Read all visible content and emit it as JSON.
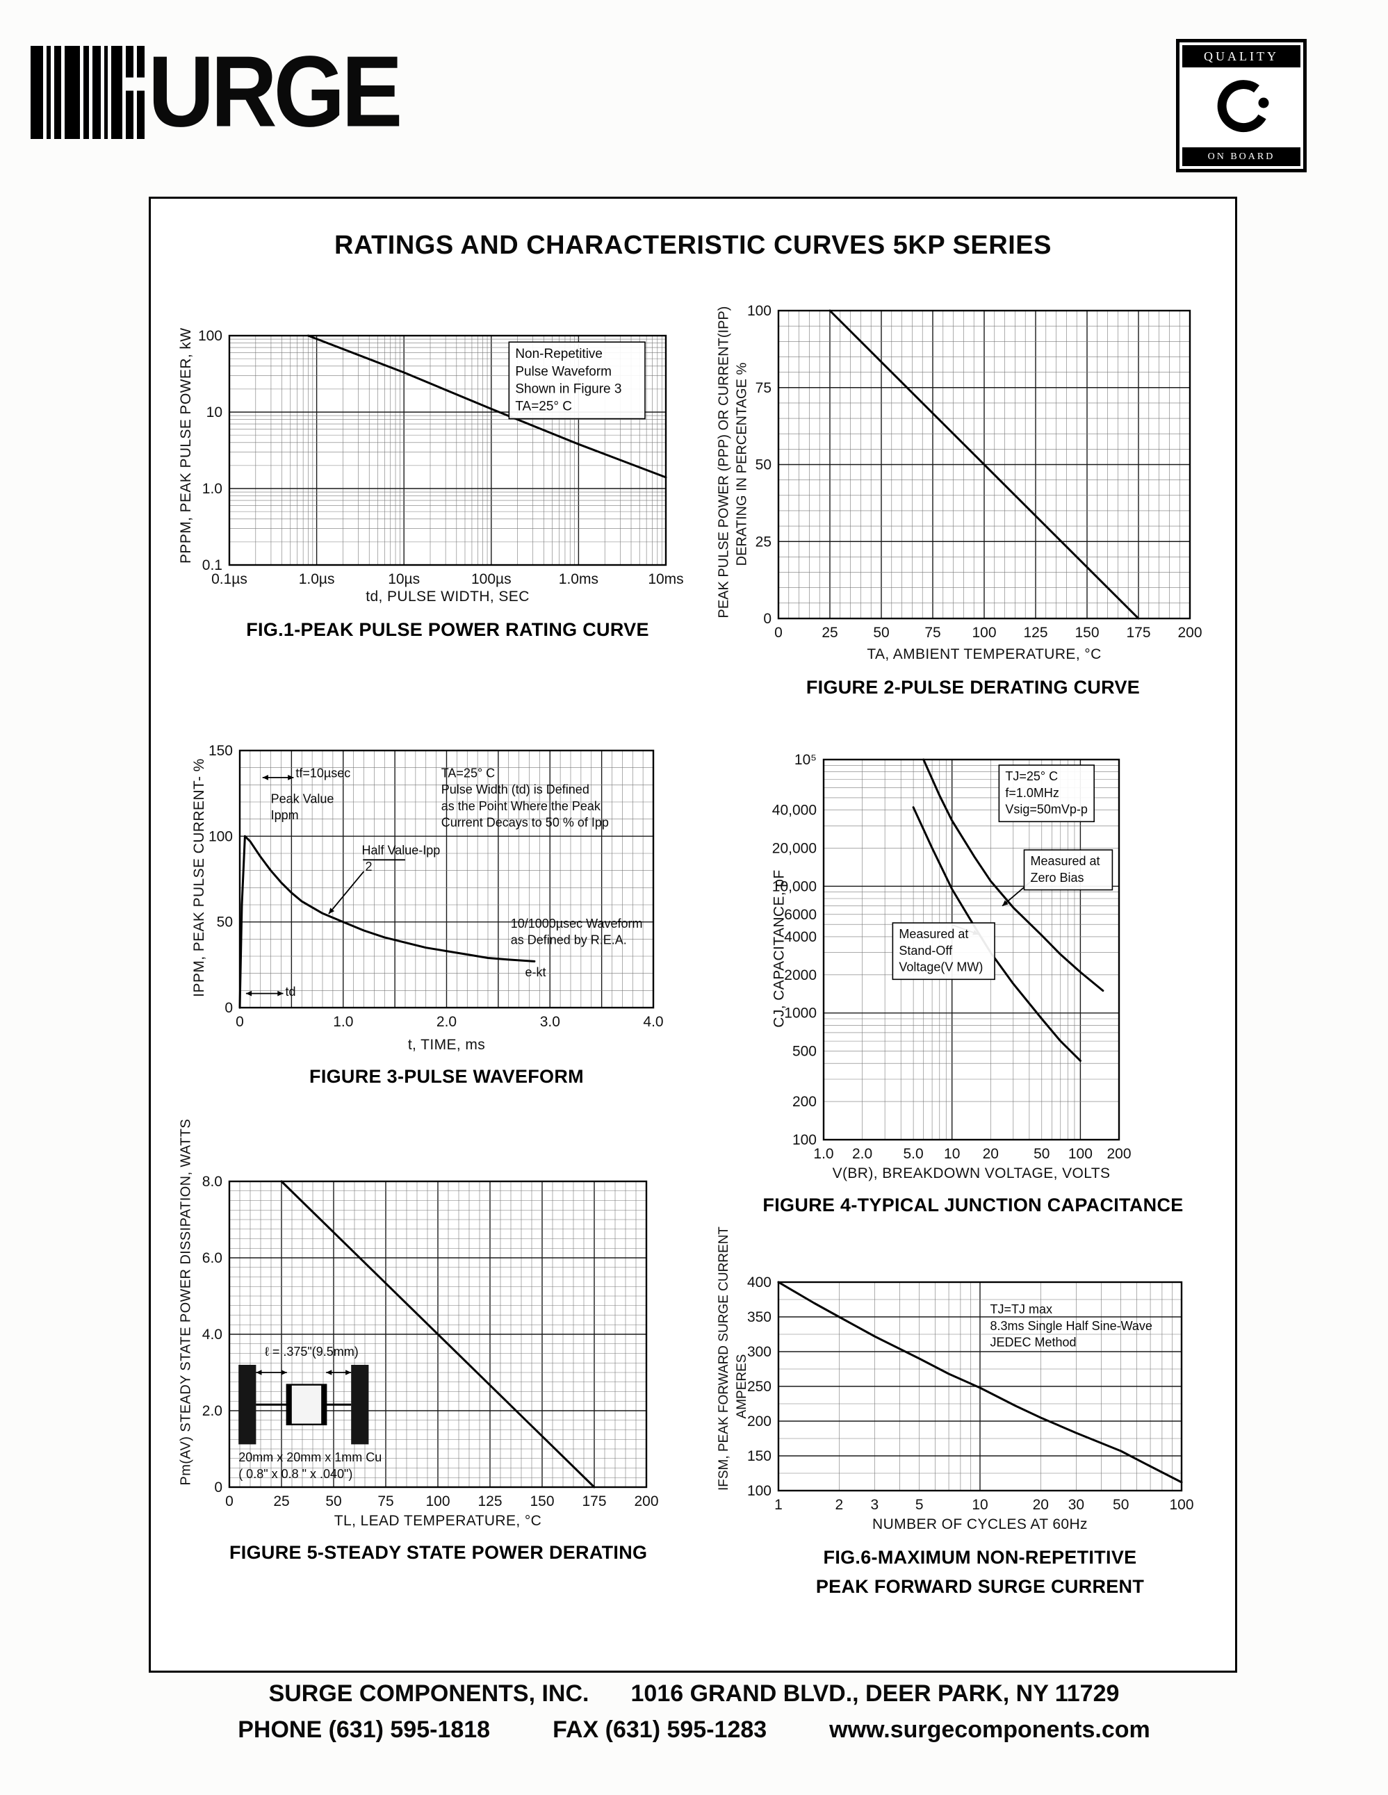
{
  "page": {
    "brand": "URGE",
    "badge_top": "QUALITY",
    "badge_bottom": "ON BOARD",
    "title": "RATINGS AND CHARACTERISTIC CURVES 5KP SERIES",
    "footer": {
      "company": "SURGE COMPONENTS, INC.",
      "address": "1016 GRAND BLVD., DEER PARK, NY  11729",
      "phone": "PHONE (631) 595-1818",
      "fax": "FAX (631) 595-1283",
      "website": "www.surgecomponents.com"
    }
  },
  "chart_data": [
    {
      "id": "fig1",
      "type": "line",
      "title": "FIG.1-PEAK PULSE POWER RATING CURVE",
      "xlabel": "td, PULSE WIDTH, SEC",
      "ylabel": "PPPM, PEAK PULSE POWER, kW",
      "xscale": "log",
      "yscale": "log",
      "xlim": [
        1e-07,
        0.01
      ],
      "ylim": [
        0.1,
        100
      ],
      "xticks": [
        {
          "v": 1e-07,
          "t": "0.1µs"
        },
        {
          "v": 1e-06,
          "t": "1.0µs"
        },
        {
          "v": 1e-05,
          "t": "10µs"
        },
        {
          "v": 0.0001,
          "t": "100µs"
        },
        {
          "v": 0.001,
          "t": "1.0ms"
        },
        {
          "v": 0.01,
          "t": "10ms"
        }
      ],
      "yticks": [
        {
          "v": 100,
          "t": "100"
        },
        {
          "v": 10,
          "t": "10"
        },
        {
          "v": 1,
          "t": "1.0"
        },
        {
          "v": 0.1,
          "t": "0.1"
        }
      ],
      "series": [
        {
          "name": "peak-pulse-power",
          "points": [
            [
              8e-07,
              100
            ],
            [
              1e-05,
              33
            ],
            [
              0.0001,
              11
            ],
            [
              0.001,
              3.8
            ],
            [
              0.01,
              1.4
            ]
          ]
        }
      ],
      "annotations": [
        {
          "lines": [
            "Non-Repetitive",
            "Pulse Waveform",
            "Shown in Figure 3",
            "TA=25° C"
          ],
          "fx": 0.655,
          "fy": 0.04,
          "box": true,
          "fs": 19
        }
      ]
    },
    {
      "id": "fig2",
      "type": "line",
      "title": "FIGURE 2-PULSE DERATING CURVE",
      "xlabel": "TA, AMBIENT TEMPERATURE, °C",
      "ylabel1": "PEAK PULSE POWER (PPP) OR CURRENT(IPP)",
      "ylabel2": "DERATING IN PERCENTAGE %",
      "xscale": "linear",
      "yscale": "linear",
      "xlim": [
        0,
        200
      ],
      "ylim": [
        0,
        100
      ],
      "grid": {
        "xminor": 5,
        "xmajor": 25,
        "yminor": 5,
        "ymajor": 25
      },
      "xticks": [
        {
          "v": 0,
          "t": "0"
        },
        {
          "v": 25,
          "t": "25"
        },
        {
          "v": 50,
          "t": "50"
        },
        {
          "v": 75,
          "t": "75"
        },
        {
          "v": 100,
          "t": "100"
        },
        {
          "v": 125,
          "t": "125"
        },
        {
          "v": 150,
          "t": "150"
        },
        {
          "v": 175,
          "t": "175"
        },
        {
          "v": 200,
          "t": "200"
        }
      ],
      "yticks": [
        {
          "v": 0,
          "t": "0"
        },
        {
          "v": 25,
          "t": "25"
        },
        {
          "v": 50,
          "t": "50"
        },
        {
          "v": 75,
          "t": "75"
        },
        {
          "v": 100,
          "t": "100"
        }
      ],
      "series": [
        {
          "name": "derating",
          "points": [
            [
              25,
              100
            ],
            [
              175,
              0
            ]
          ]
        }
      ],
      "annotations": []
    },
    {
      "id": "fig3",
      "type": "line",
      "title": "FIGURE 3-PULSE WAVEFORM",
      "xlabel": "t, TIME, ms",
      "ylabel": "IPPM, PEAK PULSE CURRENT- %",
      "xscale": "linear",
      "yscale": "linear",
      "xlim": [
        0,
        4
      ],
      "ylim": [
        0,
        150
      ],
      "grid": {
        "xminor": 0.1,
        "xmajor": 0.5,
        "yminor": 10,
        "ymajor": 50
      },
      "xticks": [
        {
          "v": 0,
          "t": "0"
        },
        {
          "v": 1,
          "t": "1.0"
        },
        {
          "v": 2,
          "t": "2.0"
        },
        {
          "v": 3,
          "t": "3.0"
        },
        {
          "v": 4,
          "t": "4.0"
        }
      ],
      "yticks": [
        {
          "v": 0,
          "t": "0"
        },
        {
          "v": 50,
          "t": "50"
        },
        {
          "v": 100,
          "t": "100"
        },
        {
          "v": 150,
          "t": "150"
        }
      ],
      "series": [
        {
          "name": "pulse-waveform",
          "points": [
            [
              0,
              0
            ],
            [
              0.02,
              60
            ],
            [
              0.05,
              100
            ],
            [
              0.1,
              97
            ],
            [
              0.2,
              88
            ],
            [
              0.3,
              80
            ],
            [
              0.4,
              73
            ],
            [
              0.5,
              67
            ],
            [
              0.6,
              62
            ],
            [
              0.8,
              55
            ],
            [
              1.0,
              50
            ],
            [
              1.2,
              45
            ],
            [
              1.4,
              41
            ],
            [
              1.6,
              38
            ],
            [
              1.8,
              35
            ],
            [
              2.0,
              33
            ],
            [
              2.2,
              31
            ],
            [
              2.4,
              29
            ],
            [
              2.6,
              28
            ],
            [
              2.85,
              27
            ]
          ]
        }
      ],
      "annotations": [
        {
          "lines": [
            "tf=10µsec"
          ],
          "fx": 0.135,
          "fy": 0.055,
          "fs": 18
        },
        {
          "lines": [
            "Peak Value",
            "Ippm"
          ],
          "fx": 0.075,
          "fy": 0.155,
          "fs": 18
        },
        {
          "lines": [
            "Half Value-Ipp",
            "          2"
          ],
          "fx": 0.295,
          "fy": 0.355,
          "fs": 18
        },
        {
          "lines": [
            "TA=25° C",
            "Pulse Width (td) is Defined",
            "as the Point Where the Peak",
            "Current Decays to 50 % of Ipp"
          ],
          "fx": 0.487,
          "fy": 0.055,
          "fs": 18
        },
        {
          "lines": [
            "10/1000µsec Waveform",
            "as Defined by R.E.A."
          ],
          "fx": 0.655,
          "fy": 0.64,
          "fs": 18
        },
        {
          "lines": [
            "e-kt"
          ],
          "fx": 0.69,
          "fy": 0.83,
          "fs": 18
        },
        {
          "lines": [
            "td"
          ],
          "fx": 0.11,
          "fy": 0.905,
          "fs": 18
        }
      ],
      "leaders": [
        {
          "pts": [
            [
              0.055,
              0.105
            ],
            [
              0.13,
              0.105
            ]
          ],
          "a1": true,
          "a2": true
        },
        {
          "pts": [
            [
              0.3,
              0.47
            ],
            [
              0.215,
              0.635
            ]
          ],
          "a2": true
        },
        {
          "pts": [
            [
              0.298,
              0.425
            ],
            [
              0.4,
              0.425
            ]
          ]
        },
        {
          "pts": [
            [
              0.015,
              0.945
            ],
            [
              0.105,
              0.945
            ]
          ],
          "a1": true,
          "a2": true
        }
      ]
    },
    {
      "id": "fig4",
      "type": "line",
      "title": "FIGURE 4-TYPICAL JUNCTION CAPACITANCE",
      "xlabel": "V(BR), BREAKDOWN VOLTAGE, VOLTS",
      "ylabel": "CJ, CAPACITANCE, pF",
      "xscale": "log",
      "yscale": "log",
      "xlim": [
        1,
        200
      ],
      "ylim": [
        100,
        100000
      ],
      "xticks": [
        {
          "v": 1,
          "t": "1.0"
        },
        {
          "v": 2,
          "t": "2.0"
        },
        {
          "v": 5,
          "t": "5.0"
        },
        {
          "v": 10,
          "t": "10"
        },
        {
          "v": 20,
          "t": "20"
        },
        {
          "v": 50,
          "t": "50"
        },
        {
          "v": 100,
          "t": "100"
        },
        {
          "v": 200,
          "t": "200"
        }
      ],
      "yticks": [
        {
          "v": 100000,
          "t": "10⁵"
        },
        {
          "v": 40000,
          "t": "40,000"
        },
        {
          "v": 20000,
          "t": "20,000"
        },
        {
          "v": 10000,
          "t": "10,000"
        },
        {
          "v": 6000,
          "t": "6000"
        },
        {
          "v": 4000,
          "t": "4000"
        },
        {
          "v": 2000,
          "t": "2000"
        },
        {
          "v": 1000,
          "t": "1000"
        },
        {
          "v": 500,
          "t": "500"
        },
        {
          "v": 200,
          "t": "200"
        },
        {
          "v": 100,
          "t": "100"
        }
      ],
      "series": [
        {
          "name": "zero-bias",
          "points": [
            [
              6,
              100000
            ],
            [
              8,
              52000
            ],
            [
              10,
              33000
            ],
            [
              15,
              17000
            ],
            [
              20,
              11000
            ],
            [
              30,
              6800
            ],
            [
              50,
              4100
            ],
            [
              70,
              2900
            ],
            [
              100,
              2100
            ],
            [
              150,
              1500
            ]
          ]
        },
        {
          "name": "stand-off",
          "points": [
            [
              5,
              42000
            ],
            [
              7,
              20000
            ],
            [
              10,
              9500
            ],
            [
              15,
              4800
            ],
            [
              20,
              3000
            ],
            [
              30,
              1700
            ],
            [
              50,
              900
            ],
            [
              70,
              600
            ],
            [
              100,
              420
            ]
          ]
        }
      ],
      "annotations": [
        {
          "lines": [
            "TJ=25° C",
            "f=1.0MHz",
            "Vsig=50mVp-p"
          ],
          "fx": 0.615,
          "fy": 0.022,
          "box": true,
          "fs": 18
        },
        {
          "lines": [
            "Measured at",
            "Zero Bias"
          ],
          "fx": 0.7,
          "fy": 0.245,
          "box": true,
          "fs": 18
        },
        {
          "lines": [
            "Measured at",
            "Stand-Off",
            "Voltage(V MW)"
          ],
          "fx": 0.255,
          "fy": 0.437,
          "box": true,
          "fs": 18
        }
      ],
      "leaders": [
        {
          "pts": [
            [
              0.71,
              0.315
            ],
            [
              0.605,
              0.385
            ]
          ],
          "a2": true
        },
        {
          "pts": [
            [
              0.435,
              0.435
            ],
            [
              0.525,
              0.46
            ]
          ],
          "a2": true
        }
      ]
    },
    {
      "id": "fig5",
      "type": "line",
      "title": "FIGURE 5-STEADY STATE POWER DERATING",
      "xlabel": "TL, LEAD TEMPERATURE, °C",
      "ylabel": "Pm(AV) STEADY STATE POWER DISSIPATION, WATTS",
      "xscale": "linear",
      "yscale": "linear",
      "xlim": [
        0,
        200
      ],
      "ylim": [
        0,
        8
      ],
      "grid": {
        "xminor": 5,
        "xmajor": 25,
        "yminor": 0.25,
        "ymajor": 2
      },
      "xticks": [
        {
          "v": 0,
          "t": "0"
        },
        {
          "v": 25,
          "t": "25"
        },
        {
          "v": 50,
          "t": "50"
        },
        {
          "v": 75,
          "t": "75"
        },
        {
          "v": 100,
          "t": "100"
        },
        {
          "v": 125,
          "t": "125"
        },
        {
          "v": 150,
          "t": "150"
        },
        {
          "v": 175,
          "t": "175"
        },
        {
          "v": 200,
          "t": "200"
        }
      ],
      "yticks": [
        {
          "v": 0,
          "t": "0"
        },
        {
          "v": 2,
          "t": "2.0"
        },
        {
          "v": 4,
          "t": "4.0"
        },
        {
          "v": 6,
          "t": "6.0"
        },
        {
          "v": 8,
          "t": "8.0"
        }
      ],
      "series": [
        {
          "name": "power-derating",
          "points": [
            [
              25,
              8
            ],
            [
              175,
              0
            ]
          ]
        }
      ],
      "annotations": [
        {
          "lines": [
            "ℓ = .375\"(9.5mm)"
          ],
          "fx": 0.085,
          "fy": 0.53,
          "fs": 18
        },
        {
          "lines": [
            "20mm x 20mm x 1mm Cu",
            "( 0.8\" x  0.8 \" x .040\")"
          ],
          "fx": 0.022,
          "fy": 0.875,
          "fs": 18
        }
      ],
      "leaders": [
        {
          "pts": [
            [
              0.064,
              0.625
            ],
            [
              0.138,
              0.625
            ]
          ],
          "a1": true,
          "a2": true
        },
        {
          "pts": [
            [
              0.232,
              0.625
            ],
            [
              0.292,
              0.625
            ]
          ],
          "a1": true,
          "a2": true
        }
      ]
    },
    {
      "id": "fig6",
      "type": "line",
      "title": "FIG.6-MAXIMUM NON-REPETITIVE PEAK FORWARD SURGE CURRENT",
      "title1": "FIG.6-MAXIMUM NON-REPETITIVE",
      "title2": "PEAK FORWARD SURGE CURRENT",
      "xlabel": "NUMBER OF CYCLES AT 60Hz",
      "ylabel1": "IFSM, PEAK FORWARD SURGE CURRENT",
      "ylabel2": "AMPERES",
      "xscale": "log",
      "yscale": "linear",
      "xlim": [
        1,
        100
      ],
      "ylim": [
        100,
        400
      ],
      "grid": {
        "yminor": 25,
        "ymajor": 50
      },
      "xticks": [
        {
          "v": 1,
          "t": "1"
        },
        {
          "v": 2,
          "t": "2"
        },
        {
          "v": 3,
          "t": "3"
        },
        {
          "v": 5,
          "t": "5"
        },
        {
          "v": 10,
          "t": "10"
        },
        {
          "v": 20,
          "t": "20"
        },
        {
          "v": 30,
          "t": "30"
        },
        {
          "v": 50,
          "t": "50"
        },
        {
          "v": 100,
          "t": "100"
        }
      ],
      "yticks": [
        {
          "v": 100,
          "t": "100"
        },
        {
          "v": 150,
          "t": "150"
        },
        {
          "v": 200,
          "t": "200"
        },
        {
          "v": 250,
          "t": "250"
        },
        {
          "v": 300,
          "t": "300"
        },
        {
          "v": 350,
          "t": "350"
        },
        {
          "v": 400,
          "t": "400"
        }
      ],
      "series": [
        {
          "name": "surge-current",
          "points": [
            [
              1,
              400
            ],
            [
              1.5,
              370
            ],
            [
              2,
              350
            ],
            [
              3,
              322
            ],
            [
              5,
              290
            ],
            [
              7,
              268
            ],
            [
              10,
              248
            ],
            [
              15,
              222
            ],
            [
              20,
              205
            ],
            [
              30,
              183
            ],
            [
              50,
              157
            ],
            [
              70,
              135
            ],
            [
              100,
              112
            ]
          ]
        }
      ],
      "annotations": [
        {
          "lines": [
            "TJ=TJ max",
            "8.3ms Single Half Sine-Wave",
            "JEDEC Method"
          ],
          "fx": 0.525,
          "fy": 0.09,
          "fs": 18
        }
      ]
    }
  ]
}
